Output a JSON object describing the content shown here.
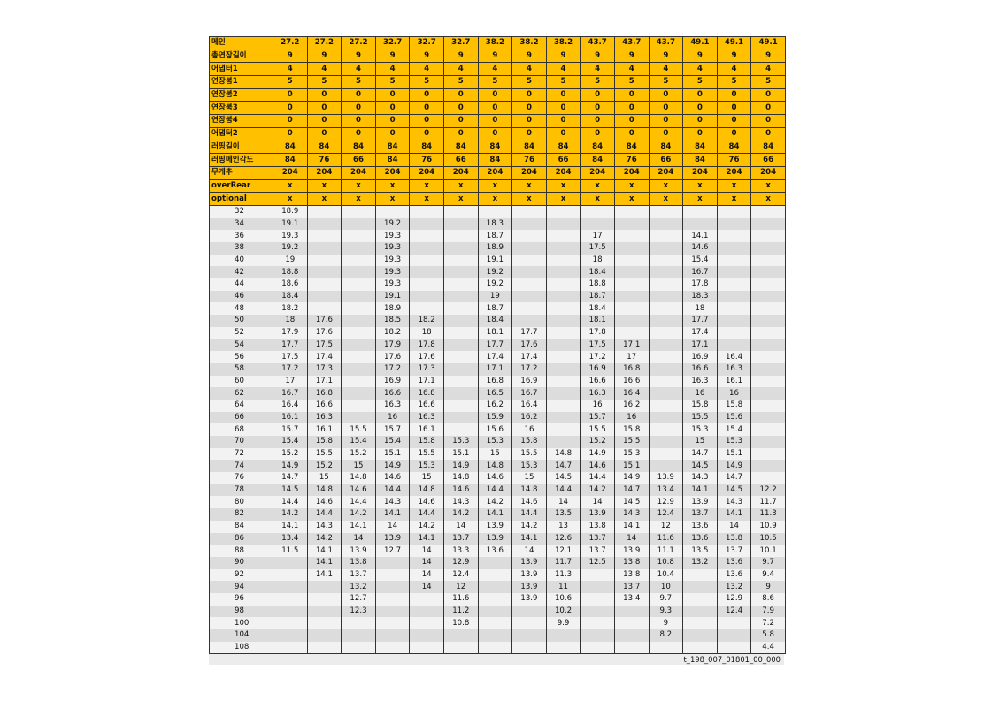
{
  "header_rows": [
    {
      "label": "메인",
      "values": [
        "27.2",
        "27.2",
        "27.2",
        "32.7",
        "32.7",
        "32.7",
        "38.2",
        "38.2",
        "38.2",
        "43.7",
        "43.7",
        "43.7",
        "49.1",
        "49.1",
        "49.1"
      ]
    },
    {
      "label": "총연장길이",
      "values": [
        "9",
        "9",
        "9",
        "9",
        "9",
        "9",
        "9",
        "9",
        "9",
        "9",
        "9",
        "9",
        "9",
        "9",
        "9"
      ]
    },
    {
      "label": "어댑터1",
      "values": [
        "4",
        "4",
        "4",
        "4",
        "4",
        "4",
        "4",
        "4",
        "4",
        "4",
        "4",
        "4",
        "4",
        "4",
        "4"
      ]
    },
    {
      "label": "연장붐1",
      "values": [
        "5",
        "5",
        "5",
        "5",
        "5",
        "5",
        "5",
        "5",
        "5",
        "5",
        "5",
        "5",
        "5",
        "5",
        "5"
      ]
    },
    {
      "label": "연장붐2",
      "values": [
        "0",
        "0",
        "0",
        "0",
        "0",
        "0",
        "0",
        "0",
        "0",
        "0",
        "0",
        "0",
        "0",
        "0",
        "0"
      ]
    },
    {
      "label": "연장붐3",
      "values": [
        "0",
        "0",
        "0",
        "0",
        "0",
        "0",
        "0",
        "0",
        "0",
        "0",
        "0",
        "0",
        "0",
        "0",
        "0"
      ]
    },
    {
      "label": "연장붐4",
      "values": [
        "0",
        "0",
        "0",
        "0",
        "0",
        "0",
        "0",
        "0",
        "0",
        "0",
        "0",
        "0",
        "0",
        "0",
        "0"
      ]
    },
    {
      "label": "어댑터2",
      "values": [
        "0",
        "0",
        "0",
        "0",
        "0",
        "0",
        "0",
        "0",
        "0",
        "0",
        "0",
        "0",
        "0",
        "0",
        "0"
      ]
    },
    {
      "label": "러핑길이",
      "values": [
        "84",
        "84",
        "84",
        "84",
        "84",
        "84",
        "84",
        "84",
        "84",
        "84",
        "84",
        "84",
        "84",
        "84",
        "84"
      ]
    },
    {
      "label": "러핑메인각도",
      "values": [
        "84",
        "76",
        "66",
        "84",
        "76",
        "66",
        "84",
        "76",
        "66",
        "84",
        "76",
        "66",
        "84",
        "76",
        "66"
      ]
    },
    {
      "label": "무게추",
      "values": [
        "204",
        "204",
        "204",
        "204",
        "204",
        "204",
        "204",
        "204",
        "204",
        "204",
        "204",
        "204",
        "204",
        "204",
        "204"
      ]
    },
    {
      "label": "overRear",
      "values": [
        "x",
        "x",
        "x",
        "x",
        "x",
        "x",
        "x",
        "x",
        "x",
        "x",
        "x",
        "x",
        "x",
        "x",
        "x"
      ]
    },
    {
      "label": "optional",
      "values": [
        "x",
        "x",
        "x",
        "x",
        "x",
        "x",
        "x",
        "x",
        "x",
        "x",
        "x",
        "x",
        "x",
        "x",
        "x"
      ]
    }
  ],
  "data_rows": [
    {
      "label": "32",
      "values": [
        "18.9",
        "",
        "",
        "",
        "",
        "",
        "",
        "",
        "",
        "",
        "",
        "",
        "",
        "",
        ""
      ]
    },
    {
      "label": "34",
      "values": [
        "19.1",
        "",
        "",
        "19.2",
        "",
        "",
        "18.3",
        "",
        "",
        "",
        "",
        "",
        "",
        "",
        ""
      ]
    },
    {
      "label": "36",
      "values": [
        "19.3",
        "",
        "",
        "19.3",
        "",
        "",
        "18.7",
        "",
        "",
        "17",
        "",
        "",
        "14.1",
        "",
        ""
      ]
    },
    {
      "label": "38",
      "values": [
        "19.2",
        "",
        "",
        "19.3",
        "",
        "",
        "18.9",
        "",
        "",
        "17.5",
        "",
        "",
        "14.6",
        "",
        ""
      ]
    },
    {
      "label": "40",
      "values": [
        "19",
        "",
        "",
        "19.3",
        "",
        "",
        "19.1",
        "",
        "",
        "18",
        "",
        "",
        "15.4",
        "",
        ""
      ]
    },
    {
      "label": "42",
      "values": [
        "18.8",
        "",
        "",
        "19.3",
        "",
        "",
        "19.2",
        "",
        "",
        "18.4",
        "",
        "",
        "16.7",
        "",
        ""
      ]
    },
    {
      "label": "44",
      "values": [
        "18.6",
        "",
        "",
        "19.3",
        "",
        "",
        "19.2",
        "",
        "",
        "18.8",
        "",
        "",
        "17.8",
        "",
        ""
      ]
    },
    {
      "label": "46",
      "values": [
        "18.4",
        "",
        "",
        "19.1",
        "",
        "",
        "19",
        "",
        "",
        "18.7",
        "",
        "",
        "18.3",
        "",
        ""
      ]
    },
    {
      "label": "48",
      "values": [
        "18.2",
        "",
        "",
        "18.9",
        "",
        "",
        "18.7",
        "",
        "",
        "18.4",
        "",
        "",
        "18",
        "",
        ""
      ]
    },
    {
      "label": "50",
      "values": [
        "18",
        "17.6",
        "",
        "18.5",
        "18.2",
        "",
        "18.4",
        "",
        "",
        "18.1",
        "",
        "",
        "17.7",
        "",
        ""
      ]
    },
    {
      "label": "52",
      "values": [
        "17.9",
        "17.6",
        "",
        "18.2",
        "18",
        "",
        "18.1",
        "17.7",
        "",
        "17.8",
        "",
        "",
        "17.4",
        "",
        ""
      ]
    },
    {
      "label": "54",
      "values": [
        "17.7",
        "17.5",
        "",
        "17.9",
        "17.8",
        "",
        "17.7",
        "17.6",
        "",
        "17.5",
        "17.1",
        "",
        "17.1",
        "",
        ""
      ]
    },
    {
      "label": "56",
      "values": [
        "17.5",
        "17.4",
        "",
        "17.6",
        "17.6",
        "",
        "17.4",
        "17.4",
        "",
        "17.2",
        "17",
        "",
        "16.9",
        "16.4",
        ""
      ]
    },
    {
      "label": "58",
      "values": [
        "17.2",
        "17.3",
        "",
        "17.2",
        "17.3",
        "",
        "17.1",
        "17.2",
        "",
        "16.9",
        "16.8",
        "",
        "16.6",
        "16.3",
        ""
      ]
    },
    {
      "label": "60",
      "values": [
        "17",
        "17.1",
        "",
        "16.9",
        "17.1",
        "",
        "16.8",
        "16.9",
        "",
        "16.6",
        "16.6",
        "",
        "16.3",
        "16.1",
        ""
      ]
    },
    {
      "label": "62",
      "values": [
        "16.7",
        "16.8",
        "",
        "16.6",
        "16.8",
        "",
        "16.5",
        "16.7",
        "",
        "16.3",
        "16.4",
        "",
        "16",
        "16",
        ""
      ]
    },
    {
      "label": "64",
      "values": [
        "16.4",
        "16.6",
        "",
        "16.3",
        "16.6",
        "",
        "16.2",
        "16.4",
        "",
        "16",
        "16.2",
        "",
        "15.8",
        "15.8",
        ""
      ]
    },
    {
      "label": "66",
      "values": [
        "16.1",
        "16.3",
        "",
        "16",
        "16.3",
        "",
        "15.9",
        "16.2",
        "",
        "15.7",
        "16",
        "",
        "15.5",
        "15.6",
        ""
      ]
    },
    {
      "label": "68",
      "values": [
        "15.7",
        "16.1",
        "15.5",
        "15.7",
        "16.1",
        "",
        "15.6",
        "16",
        "",
        "15.5",
        "15.8",
        "",
        "15.3",
        "15.4",
        ""
      ]
    },
    {
      "label": "70",
      "values": [
        "15.4",
        "15.8",
        "15.4",
        "15.4",
        "15.8",
        "15.3",
        "15.3",
        "15.8",
        "",
        "15.2",
        "15.5",
        "",
        "15",
        "15.3",
        ""
      ]
    },
    {
      "label": "72",
      "values": [
        "15.2",
        "15.5",
        "15.2",
        "15.1",
        "15.5",
        "15.1",
        "15",
        "15.5",
        "14.8",
        "14.9",
        "15.3",
        "",
        "14.7",
        "15.1",
        ""
      ]
    },
    {
      "label": "74",
      "values": [
        "14.9",
        "15.2",
        "15",
        "14.9",
        "15.3",
        "14.9",
        "14.8",
        "15.3",
        "14.7",
        "14.6",
        "15.1",
        "",
        "14.5",
        "14.9",
        ""
      ]
    },
    {
      "label": "76",
      "values": [
        "14.7",
        "15",
        "14.8",
        "14.6",
        "15",
        "14.8",
        "14.6",
        "15",
        "14.5",
        "14.4",
        "14.9",
        "13.9",
        "14.3",
        "14.7",
        ""
      ]
    },
    {
      "label": "78",
      "values": [
        "14.5",
        "14.8",
        "14.6",
        "14.4",
        "14.8",
        "14.6",
        "14.4",
        "14.8",
        "14.4",
        "14.2",
        "14.7",
        "13.4",
        "14.1",
        "14.5",
        "12.2"
      ]
    },
    {
      "label": "80",
      "values": [
        "14.4",
        "14.6",
        "14.4",
        "14.3",
        "14.6",
        "14.3",
        "14.2",
        "14.6",
        "14",
        "14",
        "14.5",
        "12.9",
        "13.9",
        "14.3",
        "11.7"
      ]
    },
    {
      "label": "82",
      "values": [
        "14.2",
        "14.4",
        "14.2",
        "14.1",
        "14.4",
        "14.2",
        "14.1",
        "14.4",
        "13.5",
        "13.9",
        "14.3",
        "12.4",
        "13.7",
        "14.1",
        "11.3"
      ]
    },
    {
      "label": "84",
      "values": [
        "14.1",
        "14.3",
        "14.1",
        "14",
        "14.2",
        "14",
        "13.9",
        "14.2",
        "13",
        "13.8",
        "14.1",
        "12",
        "13.6",
        "14",
        "10.9"
      ]
    },
    {
      "label": "86",
      "values": [
        "13.4",
        "14.2",
        "14",
        "13.9",
        "14.1",
        "13.7",
        "13.9",
        "14.1",
        "12.6",
        "13.7",
        "14",
        "11.6",
        "13.6",
        "13.8",
        "10.5"
      ]
    },
    {
      "label": "88",
      "values": [
        "11.5",
        "14.1",
        "13.9",
        "12.7",
        "14",
        "13.3",
        "13.6",
        "14",
        "12.1",
        "13.7",
        "13.9",
        "11.1",
        "13.5",
        "13.7",
        "10.1"
      ]
    },
    {
      "label": "90",
      "values": [
        "",
        "14.1",
        "13.8",
        "",
        "14",
        "12.9",
        "",
        "13.9",
        "11.7",
        "12.5",
        "13.8",
        "10.8",
        "13.2",
        "13.6",
        "9.7"
      ]
    },
    {
      "label": "92",
      "values": [
        "",
        "14.1",
        "13.7",
        "",
        "14",
        "12.4",
        "",
        "13.9",
        "11.3",
        "",
        "13.8",
        "10.4",
        "",
        "13.6",
        "9.4"
      ]
    },
    {
      "label": "94",
      "values": [
        "",
        "",
        "13.2",
        "",
        "14",
        "12",
        "",
        "13.9",
        "11",
        "",
        "13.7",
        "10",
        "",
        "13.2",
        "9"
      ]
    },
    {
      "label": "96",
      "values": [
        "",
        "",
        "12.7",
        "",
        "",
        "11.6",
        "",
        "13.9",
        "10.6",
        "",
        "13.4",
        "9.7",
        "",
        "12.9",
        "8.6"
      ]
    },
    {
      "label": "98",
      "values": [
        "",
        "",
        "12.3",
        "",
        "",
        "11.2",
        "",
        "",
        "10.2",
        "",
        "",
        "9.3",
        "",
        "12.4",
        "7.9"
      ]
    },
    {
      "label": "100",
      "values": [
        "",
        "",
        "",
        "",
        "",
        "10.8",
        "",
        "",
        "9.9",
        "",
        "",
        "9",
        "",
        "",
        "7.2"
      ]
    },
    {
      "label": "104",
      "values": [
        "",
        "",
        "",
        "",
        "",
        "",
        "",
        "",
        "",
        "",
        "",
        "8.2",
        "",
        "",
        "5.8"
      ]
    },
    {
      "label": "108",
      "values": [
        "",
        "",
        "",
        "",
        "",
        "",
        "",
        "",
        "",
        "",
        "",
        "",
        "",
        "",
        "4.4"
      ]
    }
  ],
  "footer_code": "t_198_007_01801_00_000"
}
